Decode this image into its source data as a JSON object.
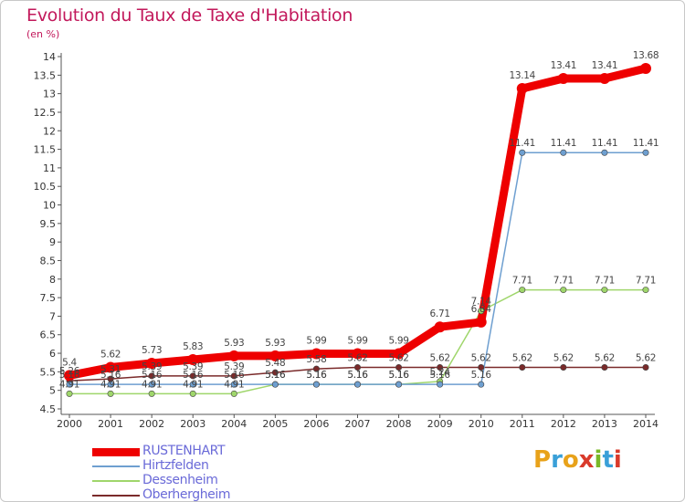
{
  "header": {
    "title": "Evolution du Taux de Taxe d'Habitation",
    "subtitle": "(en %)"
  },
  "brand": {
    "logo_text": "Proxiti",
    "logo_colors": [
      "#e8a21a",
      "#3aa0d8",
      "#e8a21a",
      "#d93a2b",
      "#7ab827",
      "#3aa0d8",
      "#d93a2b"
    ]
  },
  "chart_data": {
    "type": "line",
    "title": "Evolution du Taux de Taxe d'Habitation",
    "ylabel": "(en %)",
    "xlabel": "",
    "x": [
      "2000",
      "2001",
      "2002",
      "2003",
      "2004",
      "2005",
      "2006",
      "2007",
      "2008",
      "2009",
      "2010",
      "2011",
      "2012",
      "2013",
      "2014"
    ],
    "ylim": [
      4.5,
      14
    ],
    "yticks": [
      "4.5",
      "5",
      "5.5",
      "6",
      "6.5",
      "7",
      "7.5",
      "8",
      "8.5",
      "9",
      "9.5",
      "10",
      "10.5",
      "11",
      "11.5",
      "12",
      "12.5",
      "13",
      "13.5",
      "14"
    ],
    "grid": false,
    "legend_position": "bottom-left",
    "series": [
      {
        "name": "RUSTENHART",
        "color": "#ee0000",
        "values": [
          5.4,
          5.62,
          5.73,
          5.83,
          5.93,
          5.93,
          5.99,
          5.99,
          5.99,
          6.71,
          6.84,
          13.14,
          13.41,
          13.41,
          13.68
        ],
        "labels": [
          "5.4",
          "5.62",
          "5.73",
          "5.83",
          "5.93",
          "5.93",
          "5.99",
          "5.99",
          "5.99",
          "6.71",
          "6.84",
          "13.14",
          "13.41",
          "13.41",
          "13.68"
        ]
      },
      {
        "name": "Hirtzfelden",
        "color": "#6e9fd0",
        "values": [
          5.16,
          5.16,
          5.16,
          5.16,
          5.16,
          5.16,
          5.16,
          5.16,
          5.16,
          5.16,
          5.16,
          11.41,
          11.41,
          11.41,
          11.41
        ],
        "labels": [
          "5.16",
          "5.16",
          "5.16",
          "5.16",
          "5.16",
          "5.16",
          "5.16",
          "5.16",
          "5.16",
          "5.16",
          "5.16",
          "11.41",
          "11.41",
          "11.41",
          "11.41"
        ]
      },
      {
        "name": "Dessenheim",
        "color": "#9fd66b",
        "values": [
          4.91,
          4.91,
          4.91,
          4.91,
          4.91,
          5.16,
          5.16,
          5.16,
          5.16,
          5.24,
          7.14,
          7.71,
          7.71,
          7.71,
          7.71
        ],
        "labels": [
          "4.91",
          "4.91",
          "4.91",
          "4.91",
          "4.91",
          "5.16",
          "5.16",
          "5.16",
          "5.16",
          "5.24",
          "7.14",
          "7.71",
          "7.71",
          "7.71",
          "7.71"
        ]
      },
      {
        "name": "Oberhergheim",
        "color": "#7a2a2a",
        "values": [
          5.26,
          5.31,
          5.39,
          5.39,
          5.39,
          5.48,
          5.58,
          5.62,
          5.62,
          5.62,
          5.62,
          5.62,
          5.62,
          5.62,
          5.62
        ],
        "labels": [
          "5.26",
          "5.31",
          "5.39",
          "5.39",
          "5.39",
          "5.48",
          "5.58",
          "5.62",
          "5.62",
          "5.62",
          "5.62",
          "5.62",
          "5.62",
          "5.62",
          "5.62"
        ]
      }
    ]
  }
}
